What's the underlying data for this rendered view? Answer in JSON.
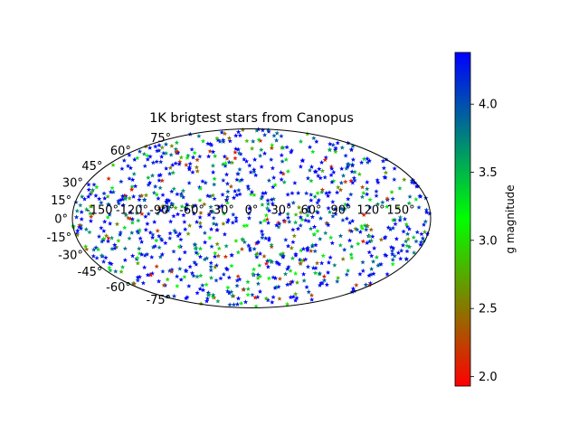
{
  "chart_data": {
    "type": "scatter",
    "projection": "mollweide",
    "title": "1K brigtest stars from Canopus",
    "marker": "star",
    "n_points": 1000,
    "x_ticks_deg": [
      -150,
      -120,
      -90,
      -60,
      -30,
      0,
      30,
      60,
      90,
      120,
      150
    ],
    "y_ticks_deg": [
      -75,
      -60,
      -45,
      -30,
      -15,
      0,
      15,
      30,
      45,
      60,
      75
    ],
    "x_tick_labels": [
      "-150°",
      "-120°",
      "-90°",
      "-60°",
      "-30°",
      "0°",
      "30°",
      "60°",
      "90°",
      "120°",
      "150°"
    ],
    "y_tick_labels": [
      "-75°",
      "-60°",
      "-45°",
      "-30°",
      "-15°",
      "0°",
      "15°",
      "30°",
      "45°",
      "60°",
      "75°"
    ],
    "xlim": [
      -180,
      180
    ],
    "ylim": [
      -90,
      90
    ],
    "grid": false,
    "colorbar": {
      "label": "g magnitude",
      "range": [
        1.93,
        4.38
      ],
      "ticks": [
        2.0,
        2.5,
        3.0,
        3.5,
        4.0
      ],
      "tick_labels": [
        "2.0",
        "2.5",
        "3.0",
        "3.5",
        "4.0"
      ],
      "colormap": [
        "#ff0000",
        "#00ff00",
        "#0000ff"
      ]
    }
  }
}
